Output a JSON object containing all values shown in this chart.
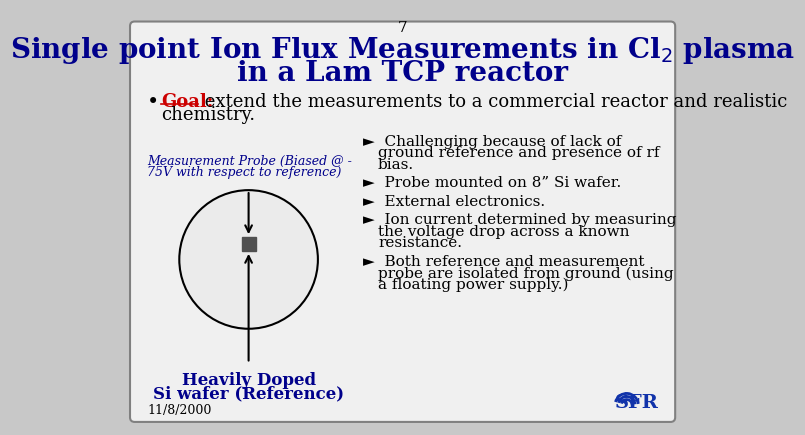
{
  "slide_number": "7",
  "title_line1": "Single point Ion Flux Measurements in Cl$_2$ plasma",
  "title_line2": "in a Lam TCP reactor",
  "title_color": "#00008B",
  "background_color": "#F0F0F0",
  "border_color": "#808080",
  "bullet_label": "Goal:",
  "bullet_label_color": "#CC0000",
  "bullet_text1": " extend the measurements to a commercial reactor and realistic",
  "bullet_text2": "chemistry.",
  "bullet_text_color": "#000000",
  "probe_label_line1": "Measurement Probe (Biased @ -",
  "probe_label_line2": "75V with respect to reference)",
  "probe_label_color": "#00008B",
  "wafer_label_line1": "Heavily Doped",
  "wafer_label_line2": "Si wafer (Reference)",
  "wafer_label_color": "#00008B",
  "right_bullet_color": "#000000",
  "date_text": "11/8/2000",
  "date_color": "#000000",
  "circle_color": "#EBEBEB",
  "circle_edge_color": "#000000",
  "square_color": "#505050",
  "line_color": "#000000",
  "font_family": "serif",
  "bullet_texts": [
    [
      "Challenging because of lack of",
      "ground reference and presence of rf",
      "bias."
    ],
    [
      "Probe mounted on 8” Si wafer."
    ],
    [
      "External electronics."
    ],
    [
      "Ion current determined by measuring",
      "the voltage drop across a known",
      "resistance."
    ],
    [
      "Both reference and measurement",
      "probe are isolated from ground (using",
      "a floating power supply.)"
    ]
  ]
}
